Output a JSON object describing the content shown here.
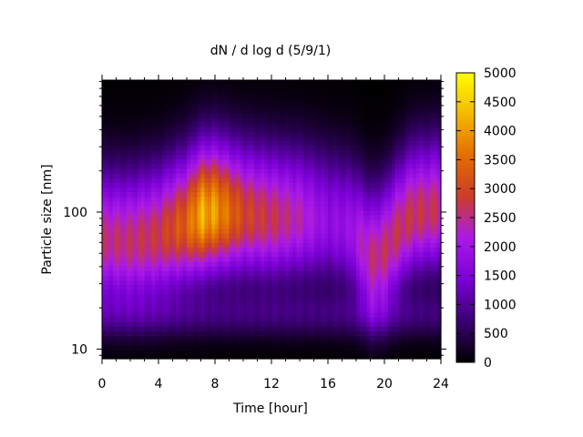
{
  "chart_data": {
    "type": "heatmap",
    "title": "dN / d log d (5/9/1)",
    "xlabel": "Time [hour]",
    "ylabel": "Particle size [nm]",
    "x_range": [
      0,
      24
    ],
    "x_ticks": [
      0,
      4,
      8,
      12,
      16,
      20,
      24
    ],
    "y_scale": "log",
    "y_range_nm": [
      8.5,
      920
    ],
    "y_ticks": [
      10,
      100
    ],
    "colorbar": {
      "range": [
        0,
        5000
      ],
      "ticks": [
        0,
        500,
        1000,
        1500,
        2000,
        2500,
        3000,
        3500,
        4000,
        4500,
        5000
      ],
      "palette_colors": [
        "#000000",
        "#3a0072",
        "#7a00d6",
        "#aa1ae8",
        "#cc3c2a",
        "#e36d00",
        "#f4b800",
        "#ffff00"
      ]
    },
    "mode_peaks": [
      {
        "t": 0,
        "d": 62,
        "n": 2700
      },
      {
        "t": 2,
        "d": 60,
        "n": 2800
      },
      {
        "t": 4,
        "d": 66,
        "n": 2950
      },
      {
        "t": 6,
        "d": 82,
        "n": 3600
      },
      {
        "t": 7,
        "d": 95,
        "n": 4500
      },
      {
        "t": 8,
        "d": 100,
        "n": 4300
      },
      {
        "t": 10,
        "d": 95,
        "n": 3200
      },
      {
        "t": 12,
        "d": 90,
        "n": 2900
      },
      {
        "t": 14,
        "d": 90,
        "n": 2500
      },
      {
        "t": 16,
        "d": 85,
        "n": 1900
      },
      {
        "t": 17.5,
        "d": 75,
        "n": 2000
      },
      {
        "t": 19,
        "d": 45,
        "n": 2700
      },
      {
        "t": 20,
        "d": 50,
        "n": 2800
      },
      {
        "t": 22,
        "d": 95,
        "n": 2900
      },
      {
        "t": 24,
        "d": 105,
        "n": 2800
      }
    ]
  }
}
